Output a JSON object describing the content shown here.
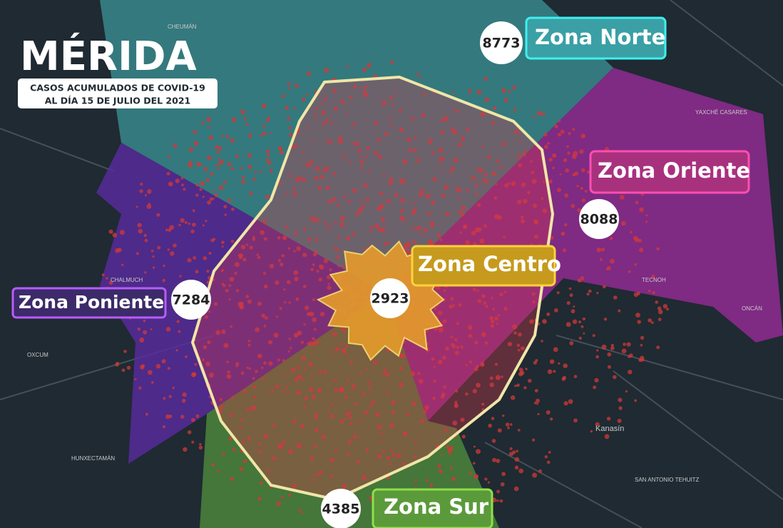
{
  "header": {
    "title": "MÉRIDA",
    "subtitle": [
      "CASOS ACUMULADOS DE COVID-19",
      "AL DÍA 15 DE JULIO DEL 2021"
    ]
  },
  "zones": [
    {
      "name": "Zona Norte",
      "count": "8773"
    },
    {
      "name": "Zona Oriente",
      "count": "8088"
    },
    {
      "name": "Zona Centro",
      "count": "2923"
    },
    {
      "name": "Zona Poniente",
      "count": "7284"
    },
    {
      "name": "Zona Sur",
      "count": "4385"
    }
  ],
  "places": [
    "Kanasín",
    "HUNXECTAMÁN",
    "OXCUM",
    "CHALMUCH",
    "CHEUMÁN",
    "TECNOH",
    "ONCÁN",
    "YAXCHÉ CASARES",
    "SAN ANTONIO TEHUITZ"
  ]
}
